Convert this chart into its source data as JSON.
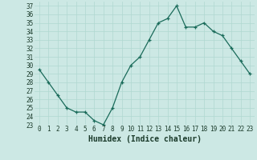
{
  "x": [
    0,
    1,
    2,
    3,
    4,
    5,
    6,
    7,
    8,
    9,
    10,
    11,
    12,
    13,
    14,
    15,
    16,
    17,
    18,
    19,
    20,
    21,
    22,
    23
  ],
  "y": [
    29.5,
    28,
    26.5,
    25,
    24.5,
    24.5,
    23.5,
    23,
    25,
    28,
    30,
    31,
    33,
    35,
    35.5,
    37,
    34.5,
    34.5,
    35,
    34,
    33.5,
    32,
    30.5,
    29
  ],
  "xlim": [
    -0.5,
    23.5
  ],
  "ylim": [
    23,
    37.5
  ],
  "yticks": [
    23,
    24,
    25,
    26,
    27,
    28,
    29,
    30,
    31,
    32,
    33,
    34,
    35,
    36,
    37
  ],
  "xticks": [
    0,
    1,
    2,
    3,
    4,
    5,
    6,
    7,
    8,
    9,
    10,
    11,
    12,
    13,
    14,
    15,
    16,
    17,
    18,
    19,
    20,
    21,
    22,
    23
  ],
  "xlabel": "Humidex (Indice chaleur)",
  "line_color": "#1a6b5a",
  "marker": "+",
  "bg_color": "#cce8e4",
  "grid_color": "#b0d8d0",
  "tick_label_color": "#1a3a2a",
  "xlabel_color": "#1a3a2a",
  "tick_fontsize": 5.5,
  "xlabel_fontsize": 7.0
}
